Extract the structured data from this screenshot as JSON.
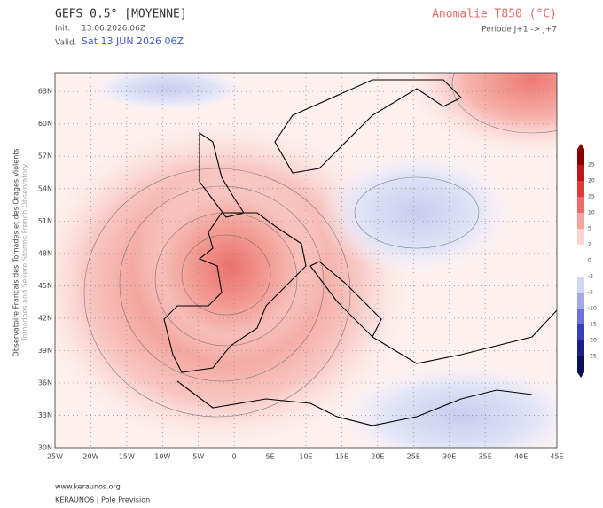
{
  "header": {
    "model": "GEFS 0.5° [MOYENNE]",
    "init_label": "Init.",
    "init": "13.06.2026.06Z",
    "valid_label": "Valid.",
    "valid": "Sat 13 JUN 2026 06Z",
    "product": "Anomalie T850 (°C)",
    "period": "Periode J+1 -> J+7"
  },
  "map": {
    "lat_labels": [
      "63N",
      "60N",
      "57N",
      "54N",
      "51N",
      "48N",
      "45N",
      "42N",
      "39N",
      "36N",
      "33N",
      "30N"
    ],
    "lon_labels": [
      "25W",
      "20W",
      "15W",
      "10W",
      "5W",
      "0",
      "5E",
      "10E",
      "15E",
      "20E",
      "25E",
      "30E",
      "35E",
      "40E",
      "45E"
    ],
    "side_text": [
      "Observatoire Francais des Tornades et des Orages Violents",
      "Tornadoes and Severe Storms French Observatory"
    ]
  },
  "colorbar": {
    "labels": [
      "25",
      "20",
      "15",
      "10",
      "5",
      "2",
      "0",
      "-2",
      "-5",
      "-10",
      "-15",
      "-20",
      "-25"
    ]
  },
  "footer": {
    "url": "www.keraunos.org",
    "credit": "KERAUNOS | Pole Prevision"
  }
}
